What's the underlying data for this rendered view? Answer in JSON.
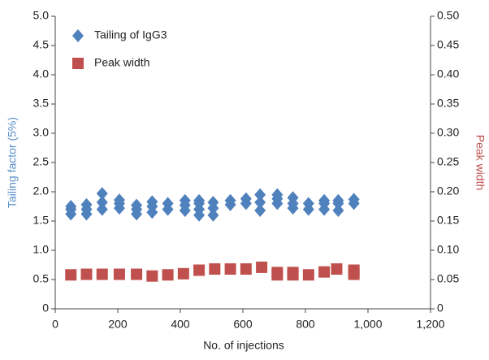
{
  "chart_data": {
    "type": "scatter",
    "xlabel": "No. of injections",
    "ylabel": "Tailing factor (5%)",
    "y2label": "Peak width",
    "xlim": [
      0,
      1200
    ],
    "xticks": [
      0,
      200,
      400,
      600,
      800,
      {
        "value": 1000,
        "label": "1,000"
      },
      {
        "value": 1200,
        "label": "1,200"
      }
    ],
    "ylim": [
      0,
      5
    ],
    "yticks": [
      0,
      0.5,
      {
        "value": 1,
        "label": "1.0"
      },
      1.5,
      {
        "value": 2,
        "label": "2.0"
      },
      2.5,
      {
        "value": 3,
        "label": "3.0"
      },
      3.5,
      {
        "value": 4,
        "label": "4.0"
      },
      4.5,
      {
        "value": 5,
        "label": "5.0"
      }
    ],
    "y2lim": [
      0,
      0.5
    ],
    "y2ticks": [
      0,
      0.05,
      {
        "value": 0.1,
        "label": "0.10"
      },
      0.15,
      {
        "value": 0.2,
        "label": "0.20"
      },
      0.25,
      {
        "value": 0.3,
        "label": "0.30"
      },
      0.35,
      {
        "value": 0.4,
        "label": "0.40"
      },
      0.45,
      {
        "value": 0.5,
        "label": "0.50"
      }
    ],
    "legend": "upper left",
    "series": [
      {
        "name": "Tailing of IgG3",
        "color": "#4f81bd",
        "marker": "diamond",
        "x": [
          50,
          50,
          50,
          100,
          100,
          100,
          150,
          150,
          150,
          205,
          205,
          205,
          260,
          260,
          260,
          310,
          310,
          310,
          360,
          360,
          415,
          415,
          415,
          460,
          460,
          460,
          460,
          505,
          505,
          505,
          560,
          560,
          610,
          610,
          655,
          655,
          655,
          710,
          710,
          710,
          760,
          760,
          760,
          810,
          810,
          860,
          860,
          860,
          905,
          905,
          905,
          955,
          955
        ],
        "values": [
          1.62,
          1.7,
          1.75,
          1.62,
          1.7,
          1.78,
          1.7,
          1.82,
          1.97,
          1.72,
          1.8,
          1.86,
          1.62,
          1.7,
          1.77,
          1.65,
          1.75,
          1.83,
          1.7,
          1.8,
          1.68,
          1.77,
          1.85,
          1.6,
          1.7,
          1.8,
          1.85,
          1.6,
          1.72,
          1.82,
          1.78,
          1.85,
          1.8,
          1.88,
          1.68,
          1.82,
          1.95,
          1.8,
          1.88,
          1.95,
          1.72,
          1.8,
          1.9,
          1.7,
          1.8,
          1.7,
          1.8,
          1.85,
          1.68,
          1.8,
          1.85,
          1.8,
          1.87
        ]
      },
      {
        "name": "Peak width",
        "color": "#c0504d",
        "marker": "square",
        "axis": "y2",
        "x": [
          50,
          100,
          150,
          205,
          260,
          310,
          360,
          410,
          460,
          510,
          560,
          610,
          660,
          710,
          710,
          760,
          760,
          810,
          860,
          900,
          955,
          955
        ],
        "values": [
          0.058,
          0.059,
          0.059,
          0.059,
          0.059,
          0.056,
          0.058,
          0.06,
          0.066,
          0.068,
          0.068,
          0.068,
          0.071,
          0.062,
          0.058,
          0.062,
          0.058,
          0.058,
          0.063,
          0.068,
          0.066,
          0.059
        ]
      }
    ]
  }
}
